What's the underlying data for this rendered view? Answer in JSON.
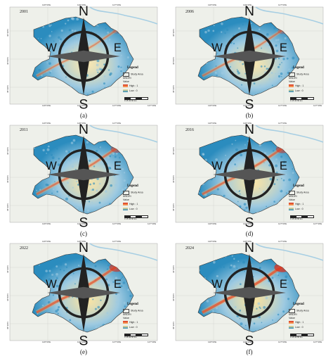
{
  "figure": {
    "panels": [
      {
        "id": "a",
        "label": "(a)",
        "year": "2001"
      },
      {
        "id": "b",
        "label": "(b)",
        "year": "2006"
      },
      {
        "id": "c",
        "label": "(c)",
        "year": "2011"
      },
      {
        "id": "d",
        "label": "(d)",
        "year": "2016"
      },
      {
        "id": "e",
        "label": "(e)",
        "year": "2022"
      },
      {
        "id": "f",
        "label": "(f)",
        "year": "2024"
      }
    ],
    "ticks": {
      "top": [
        "126°00'E",
        "126°30'E",
        "127°00'E"
      ],
      "bottom": [
        "126°00'E",
        "126°30'E",
        "127°00'E",
        "127°30'E"
      ],
      "left": [
        "46°30'N",
        "46°00'N",
        "45°30'N"
      ]
    },
    "legend": {
      "title": "Legend",
      "study_area": "Study Area",
      "index_name": "MSDRI",
      "value_label": "Value",
      "high": "High : 1",
      "low": "Low : 0",
      "scale_text": "0 15 30 60 km"
    },
    "compass": {
      "north": "N",
      "south": "S",
      "east": "E",
      "west": "W"
    }
  },
  "colors": {
    "low": "#2b8cbe",
    "mid": "#9ecae1",
    "yellow": "#fee08b",
    "high": "#d7301f",
    "background_land": "#eef0ea",
    "river": "#a6cee3"
  }
}
